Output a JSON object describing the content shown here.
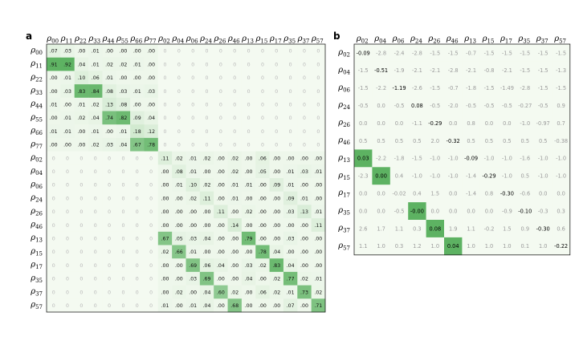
{
  "chart_data": [
    {
      "type": "heatmap",
      "panel_label": "a",
      "rows": [
        "00",
        "11",
        "22",
        "33",
        "44",
        "55",
        "66",
        "77",
        "02",
        "04",
        "06",
        "24",
        "26",
        "46",
        "13",
        "15",
        "17",
        "35",
        "37",
        "57"
      ],
      "cols": [
        "00",
        "11",
        "22",
        "33",
        "44",
        "55",
        "66",
        "77",
        "02",
        "04",
        "06",
        "24",
        "26",
        "46",
        "13",
        "15",
        "17",
        "35",
        "37",
        "57"
      ],
      "values": [
        [
          ".07",
          ".03",
          ".00",
          ".01",
          ".00",
          ".00",
          ".00",
          ".00",
          "0",
          "0",
          "0",
          "0",
          "0",
          "0",
          "0",
          "0",
          "0",
          "0",
          "0",
          "0"
        ],
        [
          ".91",
          ".92",
          ".04",
          ".01",
          ".02",
          ".02",
          ".01",
          ".00",
          "0",
          "0",
          "0",
          "0",
          "0",
          "0",
          "0",
          "0",
          "0",
          "0",
          "0",
          "0"
        ],
        [
          ".00",
          ".01",
          ".10",
          ".06",
          ".01",
          ".00",
          ".00",
          ".00",
          "0",
          "0",
          "0",
          "0",
          "0",
          "0",
          "0",
          "0",
          "0",
          "0",
          "0",
          "0"
        ],
        [
          ".00",
          ".03",
          ".83",
          ".84",
          ".08",
          ".03",
          ".01",
          ".03",
          "0",
          "0",
          "0",
          "0",
          "0",
          "0",
          "0",
          "0",
          "0",
          "0",
          "0",
          "0"
        ],
        [
          ".01",
          ".00",
          ".01",
          ".02",
          ".13",
          ".08",
          ".00",
          ".00",
          "0",
          "0",
          "0",
          "0",
          "0",
          "0",
          "0",
          "0",
          "0",
          "0",
          "0",
          "0"
        ],
        [
          ".00",
          ".01",
          ".02",
          ".04",
          ".74",
          ".82",
          ".09",
          ".04",
          "0",
          "0",
          "0",
          "0",
          "0",
          "0",
          "0",
          "0",
          "0",
          "0",
          "0",
          "0"
        ],
        [
          ".01",
          ".01",
          ".00",
          ".01",
          ".00",
          ".01",
          ".18",
          ".12",
          "0",
          "0",
          "0",
          "0",
          "0",
          "0",
          "0",
          "0",
          "0",
          "0",
          "0",
          "0"
        ],
        [
          ".00",
          ".00",
          ".00",
          ".02",
          ".03",
          ".04",
          ".67",
          ".78",
          "0",
          "0",
          "0",
          "0",
          "0",
          "0",
          "0",
          "0",
          "0",
          "0",
          "0",
          "0"
        ],
        [
          "0",
          "0",
          "0",
          "0",
          "0",
          "0",
          "0",
          "0",
          ".11",
          ".02",
          ".01",
          ".02",
          ".00",
          ".02",
          ".00",
          ".06",
          ".00",
          ".00",
          ".00",
          ".00"
        ],
        [
          "0",
          "0",
          "0",
          "0",
          "0",
          "0",
          "0",
          "0",
          ".00",
          ".08",
          ".01",
          ".00",
          ".00",
          ".02",
          ".00",
          ".05",
          ".00",
          ".01",
          ".03",
          ".01"
        ],
        [
          "0",
          "0",
          "0",
          "0",
          "0",
          "0",
          "0",
          "0",
          ".00",
          ".01",
          ".10",
          ".02",
          ".00",
          ".01",
          ".01",
          ".00",
          ".09",
          ".01",
          ".00",
          ".00"
        ],
        [
          "0",
          "0",
          "0",
          "0",
          "0",
          "0",
          "0",
          "0",
          ".00",
          ".00",
          ".02",
          ".11",
          ".00",
          ".01",
          ".00",
          ".00",
          ".00",
          ".09",
          ".01",
          ".00"
        ],
        [
          "0",
          "0",
          "0",
          "0",
          "0",
          "0",
          "0",
          "0",
          ".00",
          ".00",
          ".00",
          ".00",
          ".11",
          ".00",
          ".02",
          ".00",
          ".00",
          ".03",
          ".13",
          ".01"
        ],
        [
          "0",
          "0",
          "0",
          "0",
          "0",
          "0",
          "0",
          "0",
          ".00",
          ".00",
          ".00",
          ".00",
          ".00",
          ".14",
          ".00",
          ".00",
          ".00",
          ".00",
          ".00",
          ".11"
        ],
        [
          "0",
          "0",
          "0",
          "0",
          "0",
          "0",
          "0",
          "0",
          ".67",
          ".05",
          ".03",
          ".04",
          ".00",
          ".00",
          ".79",
          ".00",
          ".00",
          ".03",
          ".00",
          ".00"
        ],
        [
          "0",
          "0",
          "0",
          "0",
          "0",
          "0",
          "0",
          "0",
          ".02",
          ".66",
          ".01",
          ".00",
          ".00",
          ".00",
          ".00",
          ".78",
          ".04",
          ".00",
          ".00",
          ".00"
        ],
        [
          "0",
          "0",
          "0",
          "0",
          "0",
          "0",
          "0",
          "0",
          ".00",
          ".00",
          ".69",
          ".06",
          ".04",
          ".00",
          ".03",
          ".02",
          ".83",
          ".04",
          ".00",
          ".00"
        ],
        [
          "0",
          "0",
          "0",
          "0",
          "0",
          "0",
          "0",
          "0",
          ".00",
          ".00",
          ".03",
          ".69",
          ".00",
          ".00",
          ".04",
          ".00",
          ".02",
          ".77",
          ".02",
          ".01"
        ],
        [
          "0",
          "0",
          "0",
          "0",
          "0",
          "0",
          "0",
          "0",
          ".00",
          ".02",
          ".00",
          ".04",
          ".60",
          ".02",
          ".00",
          ".06",
          ".02",
          ".01",
          ".73",
          ".02"
        ],
        [
          "0",
          "0",
          "0",
          "0",
          "0",
          "0",
          "0",
          "0",
          ".01",
          ".00",
          ".01",
          ".04",
          ".00",
          ".68",
          ".00",
          ".00",
          ".00",
          ".07",
          ".00",
          ".71"
        ]
      ]
    },
    {
      "type": "heatmap",
      "panel_label": "b",
      "rows": [
        "02",
        "04",
        "06",
        "24",
        "26",
        "46",
        "13",
        "15",
        "17",
        "35",
        "37",
        "57"
      ],
      "cols": [
        "02",
        "04",
        "06",
        "24",
        "26",
        "46",
        "13",
        "15",
        "17",
        "35",
        "37",
        "57"
      ],
      "values": [
        [
          "-0.09",
          "-2.8",
          "-2.4",
          "-2.8",
          "-1.5",
          "-1.5",
          "-0.7",
          "-1.5",
          "-1.5",
          "-1.5",
          "-1.5",
          "-1.5"
        ],
        [
          "-1.5",
          "-0.51",
          "-1.9",
          "-2.1",
          "-2.1",
          "-2.8",
          "-2.1",
          "-0.8",
          "-2.1",
          "-1.5",
          "-1.5",
          "-1.3"
        ],
        [
          "-1.5",
          "-2.2",
          "-1.19",
          "-2.6",
          "-1.5",
          "-0.7",
          "-1.8",
          "-1.5",
          "-1.49",
          "-2.8",
          "-1.5",
          "-1.5"
        ],
        [
          "-0.5",
          "0.0",
          "-0.5",
          "0.08",
          "-0.5",
          "-2.0",
          "-0.5",
          "-0.5",
          "-0.5",
          "-0.27",
          "-0.5",
          "0.9"
        ],
        [
          "0.0",
          "0.0",
          "0.0",
          "-1.1",
          "-0.29",
          "0.0",
          "0.8",
          "0.0",
          "0.0",
          "-1.0",
          "-0.97",
          "0.7"
        ],
        [
          "0.5",
          "0.5",
          "0.5",
          "0.5",
          "2.0",
          "-0.32",
          "0.5",
          "0.5",
          "0.5",
          "0.5",
          "0.5",
          "-0.38"
        ],
        [
          "0.03",
          "-2.2",
          "-1.8",
          "-1.5",
          "-1.0",
          "-1.0",
          "-0.09",
          "-1.0",
          "-1.0",
          "-1.6",
          "-1.0",
          "-1.0"
        ],
        [
          "-2.3",
          "0.00",
          "0.4",
          "-1.0",
          "-1.0",
          "-1.0",
          "-1.4",
          "-0.29",
          "-1.0",
          "0.5",
          "-1.0",
          "-1.0"
        ],
        [
          "0.0",
          "0.0",
          "-0.02",
          "0.4",
          "1.5",
          "0.0",
          "-1.4",
          "0.8",
          "-0.30",
          "-0.6",
          "0.0",
          "0.0"
        ],
        [
          "0.0",
          "0.0",
          "-0.5",
          "-0.00",
          "0.0",
          "0.0",
          "0.0",
          "0.0",
          "-0.9",
          "-0.10",
          "-0.3",
          "0.3"
        ],
        [
          "2.6",
          "1.7",
          "1.1",
          "0.3",
          "0.08",
          "1.9",
          "1.1",
          "-0.2",
          "1.5",
          "0.9",
          "-0.30",
          "0.6"
        ],
        [
          "1.1",
          "1.0",
          "0.3",
          "1.2",
          "1.0",
          "0.04",
          "1.0",
          "1.0",
          "1.0",
          "0.1",
          "1.0",
          "-0.22"
        ]
      ]
    }
  ]
}
